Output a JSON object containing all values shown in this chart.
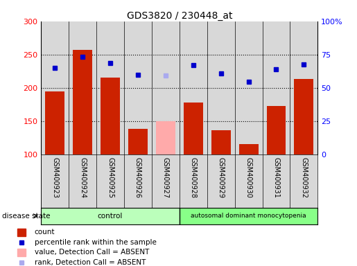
{
  "title": "GDS3820 / 230448_at",
  "samples": [
    "GSM400923",
    "GSM400924",
    "GSM400925",
    "GSM400926",
    "GSM400927",
    "GSM400928",
    "GSM400929",
    "GSM400930",
    "GSM400931",
    "GSM400932"
  ],
  "bar_values": [
    195,
    257,
    215,
    138,
    150,
    178,
    136,
    115,
    173,
    213
  ],
  "bar_colors": [
    "#cc2200",
    "#cc2200",
    "#cc2200",
    "#cc2200",
    "#ffaaaa",
    "#cc2200",
    "#cc2200",
    "#cc2200",
    "#cc2200",
    "#cc2200"
  ],
  "rank_values": [
    230,
    247,
    237,
    219,
    218,
    234,
    222,
    209,
    228,
    235
  ],
  "rank_colors": [
    "#0000cc",
    "#0000cc",
    "#0000cc",
    "#0000cc",
    "#aaaaee",
    "#0000cc",
    "#0000cc",
    "#0000cc",
    "#0000cc",
    "#0000cc"
  ],
  "ylim_left": [
    100,
    300
  ],
  "ylim_right": [
    0,
    100
  ],
  "yticks_left": [
    100,
    150,
    200,
    250,
    300
  ],
  "yticks_right": [
    0,
    25,
    50,
    75,
    100
  ],
  "ytick_labels_right": [
    "0",
    "25",
    "50",
    "75",
    "100%"
  ],
  "hlines": [
    150,
    200,
    250
  ],
  "control_samples": 5,
  "disease_label": "autosomal dominant monocytopenia",
  "control_label": "control",
  "legend_items": [
    {
      "label": "count",
      "color": "#cc2200",
      "type": "square"
    },
    {
      "label": "percentile rank within the sample",
      "color": "#0000cc",
      "type": "square"
    },
    {
      "label": "value, Detection Call = ABSENT",
      "color": "#ffaaaa",
      "type": "square"
    },
    {
      "label": "rank, Detection Call = ABSENT",
      "color": "#aaaaee",
      "type": "square"
    }
  ],
  "plot_bg_color": "#d8d8d8",
  "control_bg": "#bbffbb",
  "disease_bg": "#88ff88"
}
